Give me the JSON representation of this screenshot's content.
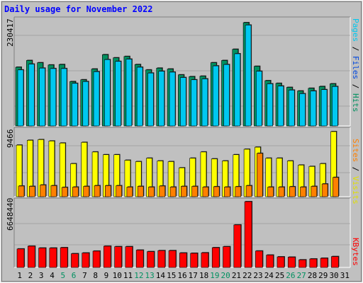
{
  "colors": {
    "background": "#c0c0c0",
    "pages": "#00c8f0",
    "files": "#0048e0",
    "hits": "#009060",
    "visits": "#ffff00",
    "sites": "#ff8000",
    "kbytes": "#ff0000",
    "title": "#0000ff",
    "weekend": "#009060"
  },
  "chart_data": [
    {
      "type": "bar",
      "title": "Daily usage for November 2022",
      "max_label": "230417",
      "legend": {
        "pages": "Pages",
        "files": "Files",
        "hits": "Hits",
        "sep1": " / ",
        "sep2": " / "
      },
      "categories": [
        "1",
        "2",
        "3",
        "4",
        "5",
        "6",
        "7",
        "8",
        "9",
        "10",
        "11",
        "12",
        "13",
        "14",
        "15",
        "16",
        "17",
        "18",
        "19",
        "20",
        "21",
        "22",
        "23",
        "24",
        "25",
        "26",
        "27",
        "28",
        "29",
        "30",
        "31"
      ],
      "ylim": [
        0,
        230417
      ],
      "series": [
        {
          "name": "Hits",
          "values": [
            131000,
            146000,
            141000,
            136000,
            137000,
            99000,
            103000,
            127000,
            159000,
            152000,
            155000,
            137000,
            125000,
            129000,
            127000,
            114000,
            110000,
            111000,
            141000,
            146000,
            171000,
            230417,
            133000,
            101000,
            95000,
            86000,
            78000,
            84000,
            88000,
            94000,
            0
          ]
        },
        {
          "name": "Files",
          "values": [
            125000,
            138000,
            129000,
            128000,
            128000,
            95000,
            99000,
            121000,
            148000,
            144000,
            149000,
            131000,
            118000,
            122000,
            120000,
            108000,
            103000,
            105000,
            134000,
            137000,
            161000,
            225000,
            122000,
            94000,
            89000,
            80000,
            72000,
            78000,
            81000,
            88000,
            0
          ]
        },
        {
          "name": "Pages",
          "values": [
            0,
            0,
            0,
            0,
            0,
            0,
            0,
            0,
            0,
            0,
            0,
            0,
            0,
            0,
            0,
            0,
            0,
            0,
            0,
            0,
            0,
            0,
            0,
            0,
            0,
            0,
            0,
            0,
            0,
            0,
            0
          ]
        }
      ]
    },
    {
      "type": "bar",
      "max_label": "9466",
      "legend": {
        "sites": "Sites",
        "visits": "Visits",
        "sep": " / "
      },
      "categories": [
        "1",
        "2",
        "3",
        "4",
        "5",
        "6",
        "7",
        "8",
        "9",
        "10",
        "11",
        "12",
        "13",
        "14",
        "15",
        "16",
        "17",
        "18",
        "19",
        "20",
        "21",
        "22",
        "23",
        "24",
        "25",
        "26",
        "27",
        "28",
        "29",
        "30",
        "31"
      ],
      "ylim": [
        0,
        9466
      ],
      "series": [
        {
          "name": "Visits",
          "values": [
            7500,
            8200,
            8300,
            8100,
            7800,
            4800,
            7900,
            6500,
            6100,
            6100,
            5300,
            5100,
            5600,
            5200,
            5100,
            4200,
            5600,
            6500,
            5500,
            5200,
            6100,
            6900,
            7200,
            5600,
            5600,
            5200,
            4600,
            4400,
            4800,
            9466,
            0
          ]
        },
        {
          "name": "Sites",
          "values": [
            1550,
            1500,
            1700,
            1600,
            1350,
            1400,
            1500,
            1600,
            1600,
            1600,
            1400,
            1500,
            1400,
            1550,
            1400,
            1500,
            1500,
            1400,
            1450,
            1400,
            1450,
            1600,
            6300,
            1400,
            1400,
            1450,
            1400,
            1500,
            1850,
            2800,
            0
          ]
        }
      ]
    },
    {
      "type": "bar",
      "max_label": "6648440",
      "legend": {
        "kbytes": "KBytes"
      },
      "categories": [
        "1",
        "2",
        "3",
        "4",
        "5",
        "6",
        "7",
        "8",
        "9",
        "10",
        "11",
        "12",
        "13",
        "14",
        "15",
        "16",
        "17",
        "18",
        "19",
        "20",
        "21",
        "22",
        "23",
        "24",
        "25",
        "26",
        "27",
        "28",
        "29",
        "30",
        "31"
      ],
      "ylim": [
        0,
        6648440
      ],
      "series": [
        {
          "name": "KBytes",
          "values": [
            1870000,
            2150000,
            1960000,
            1960000,
            2000000,
            1390000,
            1460000,
            1650000,
            2150000,
            2100000,
            2100000,
            1750000,
            1600000,
            1700000,
            1700000,
            1460000,
            1430000,
            1480000,
            2000000,
            2100000,
            4300000,
            6648440,
            1660000,
            1250000,
            1070000,
            1040000,
            770000,
            860000,
            930000,
            1100000,
            0
          ]
        }
      ]
    }
  ],
  "x_axis": {
    "labels": [
      "1",
      "2",
      "3",
      "4",
      "5",
      "6",
      "7",
      "8",
      "9",
      "10",
      "11",
      "12",
      "13",
      "14",
      "15",
      "16",
      "17",
      "18",
      "19",
      "20",
      "21",
      "22",
      "23",
      "24",
      "25",
      "26",
      "27",
      "28",
      "29",
      "30",
      "31"
    ],
    "weekend_days": [
      5,
      6,
      12,
      13,
      19,
      20,
      26,
      27
    ]
  }
}
